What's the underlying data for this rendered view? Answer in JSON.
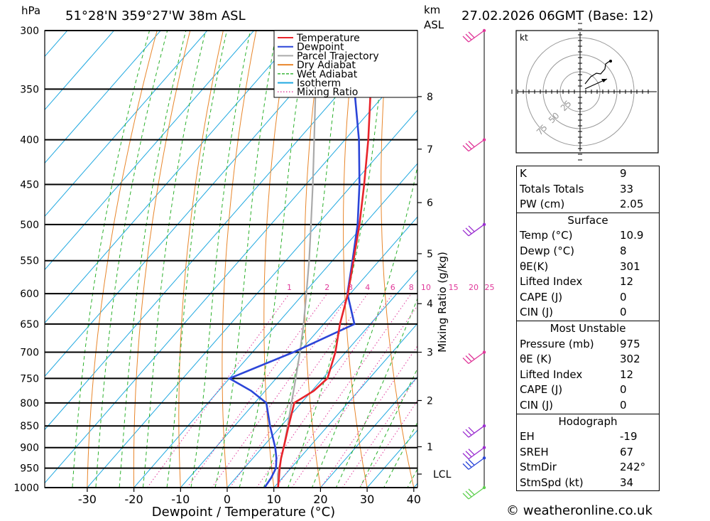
{
  "header": {
    "location": "51°28'N  359°27'W  38m  ASL",
    "datetime": "27.02.2026  06GMT  (Base: 12)",
    "hpa_label": "hPa",
    "km_label": "km",
    "asl_label": "ASL"
  },
  "chart_data": {
    "type": "skew-t",
    "title": "51°28'N  359°27'W  38m  ASL",
    "xlabel": "Dewpoint / Temperature (°C)",
    "ylabel": "hPa",
    "mixing_ratio_label": "Mixing Ratio (g/kg)",
    "xlim": [
      -40,
      40
    ],
    "ylim": [
      1000,
      300
    ],
    "pressure_ticks": [
      300,
      350,
      400,
      450,
      500,
      550,
      600,
      650,
      700,
      750,
      800,
      850,
      900,
      950,
      1000
    ],
    "temp_ticks": [
      -30,
      -20,
      -10,
      0,
      10,
      20,
      30,
      40
    ],
    "km_ticks": [
      {
        "label": "8",
        "p": 357
      },
      {
        "label": "7",
        "p": 410
      },
      {
        "label": "6",
        "p": 472
      },
      {
        "label": "5",
        "p": 540
      },
      {
        "label": "4",
        "p": 616
      },
      {
        "label": "3",
        "p": 700
      },
      {
        "label": "2",
        "p": 795
      },
      {
        "label": "1",
        "p": 898
      }
    ],
    "lcl": {
      "label": "LCL",
      "p": 965
    },
    "mixing_ratio_values": [
      "1",
      "2",
      "3",
      "4",
      "6",
      "8",
      "10",
      "15",
      "20",
      "25"
    ],
    "series": [
      {
        "name": "Temperature",
        "color": "#e8242b",
        "points": [
          [
            1000,
            10.9
          ],
          [
            975,
            9.3
          ],
          [
            950,
            7.6
          ],
          [
            925,
            6.0
          ],
          [
            900,
            4.6
          ],
          [
            850,
            1.6
          ],
          [
            800,
            -1.5
          ],
          [
            775,
            0.4
          ],
          [
            750,
            1.0
          ],
          [
            700,
            -2.2
          ],
          [
            650,
            -6.5
          ],
          [
            600,
            -10.5
          ],
          [
            550,
            -15.5
          ],
          [
            500,
            -21.0
          ],
          [
            450,
            -27.5
          ],
          [
            400,
            -35.0
          ],
          [
            350,
            -44.0
          ],
          [
            300,
            -53.5
          ]
        ]
      },
      {
        "name": "Dewpoint",
        "color": "#2b45d8",
        "points": [
          [
            1000,
            8.0
          ],
          [
            975,
            7.6
          ],
          [
            950,
            6.8
          ],
          [
            925,
            5.0
          ],
          [
            900,
            2.8
          ],
          [
            850,
            -2.4
          ],
          [
            800,
            -7.5
          ],
          [
            775,
            -13.0
          ],
          [
            750,
            -20.0
          ],
          [
            700,
            -11.2
          ],
          [
            650,
            -3.4
          ],
          [
            600,
            -10.6
          ],
          [
            550,
            -15.7
          ],
          [
            500,
            -21.4
          ],
          [
            450,
            -28.5
          ],
          [
            400,
            -37.0
          ],
          [
            350,
            -47.5
          ],
          [
            300,
            -58.0
          ]
        ]
      },
      {
        "name": "Parcel Trajectory",
        "color": "#aaaaaa",
        "points": [
          [
            1000,
            10.9
          ],
          [
            965,
            8.3
          ],
          [
            900,
            4.6
          ],
          [
            850,
            1.4
          ],
          [
            800,
            -2.1
          ],
          [
            750,
            -5.8
          ],
          [
            700,
            -9.8
          ],
          [
            650,
            -14.3
          ],
          [
            600,
            -19.4
          ],
          [
            550,
            -25.0
          ],
          [
            500,
            -31.4
          ],
          [
            450,
            -38.5
          ],
          [
            400,
            -46.6
          ],
          [
            350,
            -55.8
          ],
          [
            300,
            -66.5
          ]
        ]
      }
    ],
    "legend": {
      "position": "top-right",
      "entries": [
        {
          "label": "Temperature",
          "color": "#e8242b",
          "style": "solid"
        },
        {
          "label": "Dewpoint",
          "color": "#2b45d8",
          "style": "solid"
        },
        {
          "label": "Parcel Trajectory",
          "color": "#aaaaaa",
          "style": "solid"
        },
        {
          "label": "Dry Adiabat",
          "color": "#e8862b",
          "style": "solid"
        },
        {
          "label": "Wet Adiabat",
          "color": "#2bb02b",
          "style": "dashed"
        },
        {
          "label": "Isotherm",
          "color": "#1fa8e0",
          "style": "solid"
        },
        {
          "label": "Mixing Ratio",
          "color": "#e0389a",
          "style": "dotted"
        }
      ]
    },
    "wind_barbs": [
      {
        "p": 300,
        "color": "#e0389a"
      },
      {
        "p": 400,
        "color": "#e0389a"
      },
      {
        "p": 500,
        "color": "#9b2fd0"
      },
      {
        "p": 700,
        "color": "#e0389a"
      },
      {
        "p": 850,
        "color": "#9b2fd0"
      },
      {
        "p": 900,
        "color": "#9b2fd0"
      },
      {
        "p": 925,
        "color": "#2b45d8"
      },
      {
        "p": 1000,
        "color": "#5fd050"
      }
    ]
  },
  "hodograph": {
    "unit_label": "kt",
    "ring_labels": [
      "25",
      "50",
      "75"
    ]
  },
  "indices": {
    "top": [
      {
        "label": "K",
        "value": "9"
      },
      {
        "label": "Totals Totals",
        "value": "33"
      },
      {
        "label": "PW (cm)",
        "value": "2.05"
      }
    ],
    "surface": {
      "title": "Surface",
      "rows": [
        {
          "label": "Temp (°C)",
          "value": "10.9"
        },
        {
          "label": "Dewp (°C)",
          "value": "8"
        },
        {
          "label": "θE(K)",
          "value": "301"
        },
        {
          "label": "Lifted Index",
          "value": "12"
        },
        {
          "label": "CAPE (J)",
          "value": "0"
        },
        {
          "label": "CIN (J)",
          "value": "0"
        }
      ]
    },
    "most_unstable": {
      "title": "Most Unstable",
      "rows": [
        {
          "label": "Pressure (mb)",
          "value": "975"
        },
        {
          "label": "θE (K)",
          "value": "302"
        },
        {
          "label": "Lifted Index",
          "value": "12"
        },
        {
          "label": "CAPE (J)",
          "value": "0"
        },
        {
          "label": "CIN (J)",
          "value": "0"
        }
      ]
    },
    "hodograph": {
      "title": "Hodograph",
      "rows": [
        {
          "label": "EH",
          "value": "-19"
        },
        {
          "label": "SREH",
          "value": "67"
        },
        {
          "label": "StmDir",
          "value": "242°"
        },
        {
          "label": "StmSpd (kt)",
          "value": "34"
        }
      ]
    }
  },
  "footer": {
    "copyright": "© weatheronline.co.uk"
  }
}
